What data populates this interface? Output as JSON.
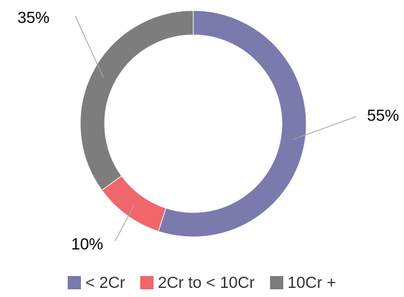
{
  "chart_data": {
    "type": "pie",
    "variant": "donut",
    "categories": [
      "< 2Cr",
      "2Cr to < 10Cr",
      "10Cr +"
    ],
    "values": [
      55,
      10,
      35
    ],
    "data_labels": [
      "55%",
      "10%",
      "35%"
    ],
    "colors": [
      "#7a7aad",
      "#f0666a",
      "#7d7d7d"
    ],
    "legend_position": "bottom"
  }
}
